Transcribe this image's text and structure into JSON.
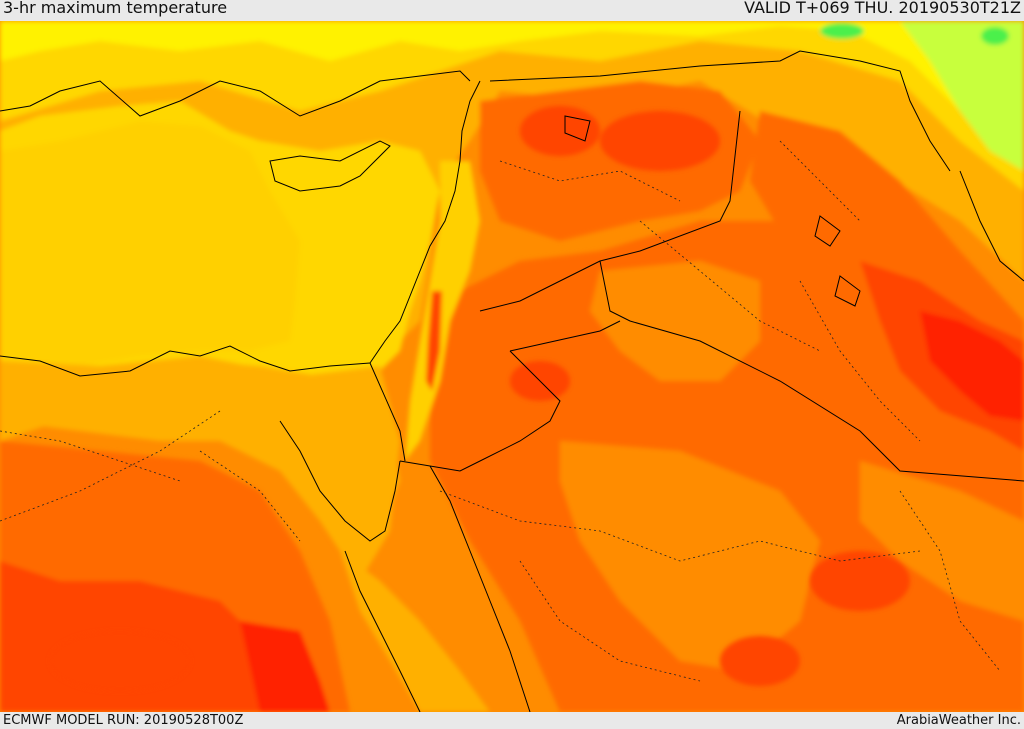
{
  "header": {
    "title": "3-hr maximum temperature",
    "valid": "VALID T+069 THU. 20190530T21Z"
  },
  "footer": {
    "model_run": "ECMWF MODEL RUN: 20190528T00Z",
    "credit": "ArabiaWeather Inc."
  },
  "legend_colors": {
    "cool_green": "#4cf04c",
    "light_green": "#c8ff3c",
    "yellow": "#fff200",
    "gold": "#ffd700",
    "light_orange": "#ffb000",
    "orange": "#ff8c00",
    "dark_orange": "#ff6a00",
    "red_orange": "#ff4500",
    "red": "#ff2400"
  }
}
